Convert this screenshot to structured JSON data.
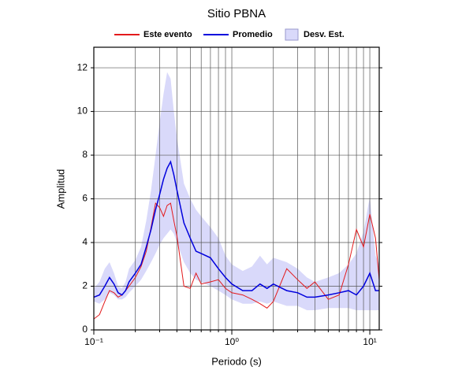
{
  "chart_data": {
    "type": "line",
    "title": "Sitio PBNA",
    "x_label": "Periodo (s)",
    "y_label": "Amplitud",
    "x": [
      0.1,
      0.11,
      0.12,
      0.13,
      0.14,
      0.15,
      0.16,
      0.17,
      0.18,
      0.2,
      0.22,
      0.24,
      0.26,
      0.28,
      0.3,
      0.32,
      0.34,
      0.36,
      0.38,
      0.4,
      0.45,
      0.5,
      0.55,
      0.6,
      0.7,
      0.8,
      0.9,
      1,
      1.2,
      1.4,
      1.6,
      1.8,
      2,
      2.5,
      3,
      3.5,
      4,
      5,
      6,
      7,
      8,
      9,
      10,
      11,
      11.7
    ],
    "series": [
      {
        "name": "Este evento",
        "color": "#e31a1c",
        "values": [
          0.5,
          0.7,
          1.3,
          1.8,
          1.7,
          1.5,
          1.6,
          1.8,
          2.0,
          2.4,
          2.9,
          3.6,
          4.7,
          5.8,
          5.6,
          5.2,
          5.7,
          5.8,
          5.0,
          4.3,
          2.0,
          1.9,
          2.6,
          2.1,
          2.2,
          2.3,
          1.9,
          1.7,
          1.6,
          1.4,
          1.2,
          1.0,
          1.3,
          2.8,
          2.3,
          1.9,
          2.2,
          1.4,
          1.6,
          3.0,
          4.6,
          3.8,
          5.3,
          4.2,
          2.3
        ]
      },
      {
        "name": "Promedio",
        "color": "#0000dd",
        "values": [
          1.5,
          1.6,
          2.0,
          2.4,
          2.1,
          1.7,
          1.6,
          1.8,
          2.2,
          2.6,
          3.0,
          3.8,
          4.6,
          5.5,
          6.2,
          6.9,
          7.4,
          7.7,
          7.1,
          6.4,
          4.9,
          4.2,
          3.6,
          3.5,
          3.3,
          2.8,
          2.4,
          2.1,
          1.8,
          1.8,
          2.1,
          1.9,
          2.1,
          1.8,
          1.7,
          1.5,
          1.5,
          1.6,
          1.7,
          1.8,
          1.6,
          2.0,
          2.6,
          1.8,
          1.8
        ]
      }
    ],
    "band": {
      "name": "Desv. Est.",
      "color": "#d9d9fa",
      "upper": [
        1.9,
        2.2,
        2.8,
        3.1,
        2.6,
        2.0,
        1.9,
        2.2,
        2.8,
        3.2,
        3.8,
        5.0,
        6.4,
        8.0,
        9.5,
        10.8,
        11.8,
        11.5,
        10.0,
        8.8,
        6.7,
        6.0,
        5.5,
        5.2,
        4.7,
        4.2,
        3.4,
        3.0,
        2.7,
        2.9,
        3.4,
        3.0,
        3.3,
        3.1,
        2.8,
        2.4,
        2.2,
        2.4,
        2.6,
        3.0,
        3.5,
        4.5,
        6.1,
        3.4,
        3.0
      ],
      "lower": [
        1.3,
        1.2,
        1.4,
        1.7,
        1.6,
        1.4,
        1.4,
        1.5,
        1.7,
        2.0,
        2.3,
        2.7,
        3.1,
        3.5,
        3.9,
        4.2,
        4.4,
        4.6,
        4.4,
        4.0,
        3.1,
        2.6,
        2.3,
        2.2,
        2.0,
        1.8,
        1.6,
        1.4,
        1.2,
        1.2,
        1.3,
        1.2,
        1.3,
        1.1,
        1.1,
        0.9,
        0.9,
        1.0,
        1.0,
        1.0,
        0.9,
        0.9,
        0.9,
        0.9,
        0.9
      ]
    },
    "x_scale": "log",
    "xlim": [
      0.1,
      11.7
    ],
    "ylim": [
      0,
      12.94
    ],
    "xticks": [
      {
        "value": 0.1,
        "label": "10⁻¹"
      },
      {
        "value": 1,
        "label": "10⁰"
      },
      {
        "value": 10,
        "label": "10¹"
      }
    ],
    "xminor": [
      0.2,
      0.3,
      0.4,
      0.5,
      0.6,
      0.7,
      0.8,
      0.9,
      2,
      3,
      4,
      5,
      6,
      7,
      8,
      9
    ],
    "yticks": [
      0,
      2,
      4,
      6,
      8,
      10,
      12
    ],
    "grid": true
  }
}
